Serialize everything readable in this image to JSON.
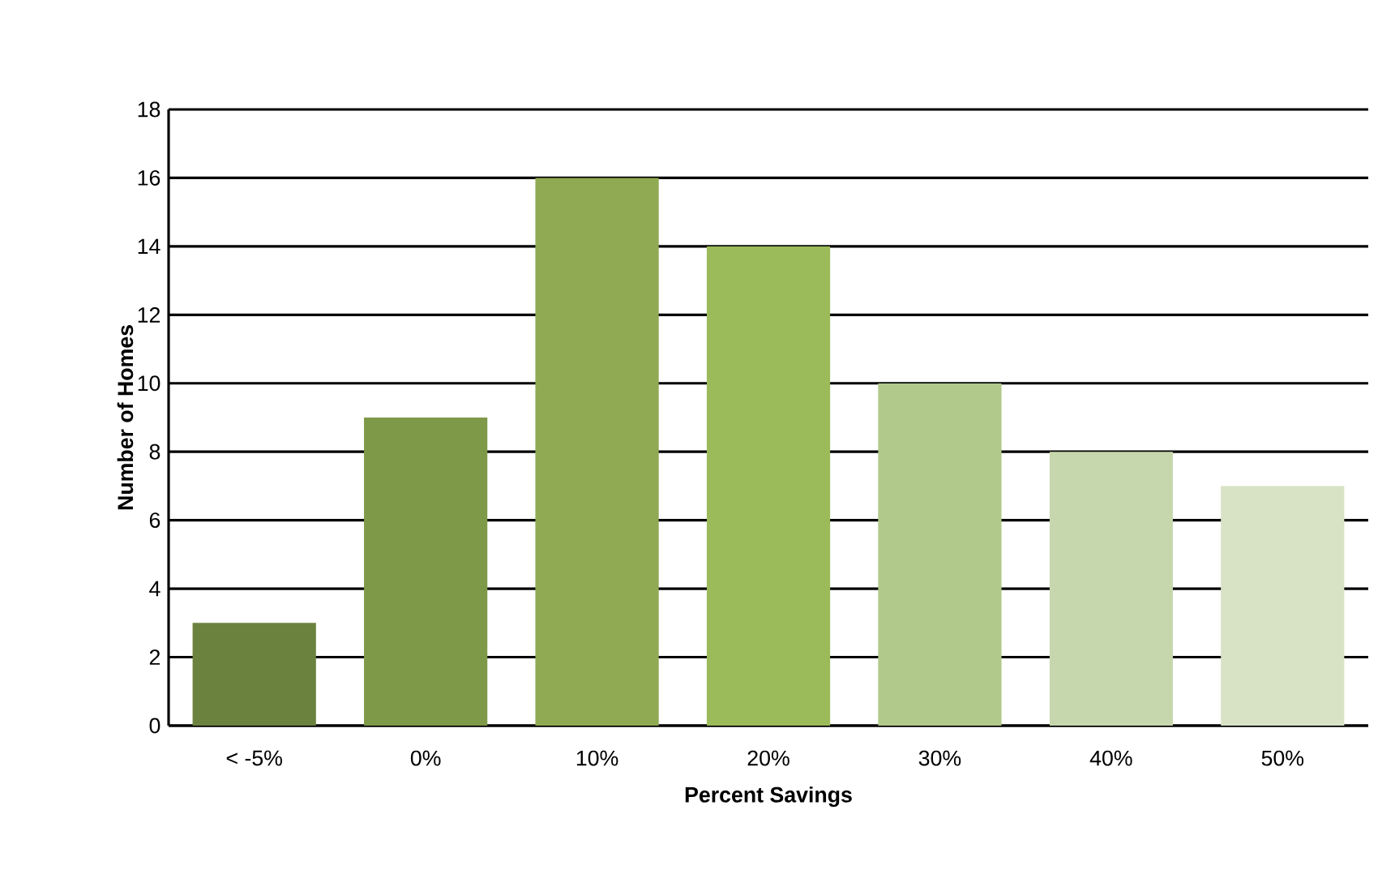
{
  "chart_data": {
    "type": "bar",
    "xlabel": "Percent Savings",
    "ylabel": "Number of Homes",
    "categories": [
      "< -5%",
      "0%",
      "10%",
      "20%",
      "30%",
      "40%",
      "50%"
    ],
    "values": [
      3,
      9,
      16,
      14,
      10,
      8,
      7
    ],
    "colors": [
      "#6b823e",
      "#7e9a49",
      "#8faa52",
      "#9bba59",
      "#b1c98b",
      "#c7d7ad",
      "#d8e3c6"
    ],
    "ylim": [
      0,
      18
    ],
    "yticks": [
      0,
      2,
      4,
      6,
      8,
      10,
      12,
      14,
      16,
      18
    ],
    "grid": "y"
  }
}
